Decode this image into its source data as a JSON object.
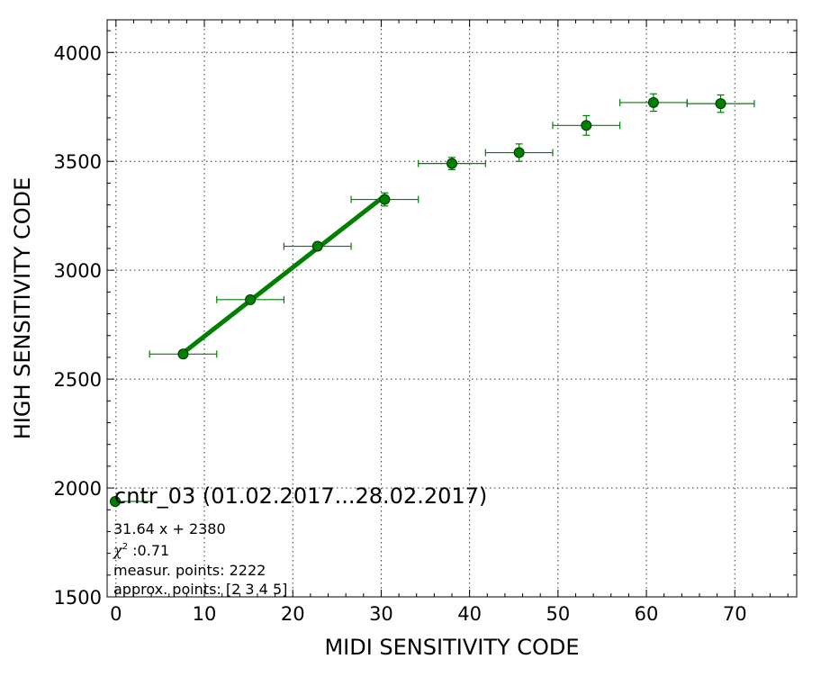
{
  "chart_data": {
    "type": "scatter",
    "xlabel": "MIDI SENSITIVITY CODE",
    "ylabel": "HIGH SENSITIVITY CODE",
    "xlim": [
      -1,
      77
    ],
    "ylim": [
      1500,
      4150
    ],
    "x_ticks": [
      0,
      10,
      20,
      30,
      40,
      50,
      60,
      70
    ],
    "y_ticks": [
      1500,
      2000,
      2500,
      3000,
      3500,
      4000
    ],
    "grid": true,
    "colors": {
      "marker": "#008000",
      "marker_edge": "#003300",
      "fit_line": "#007f00",
      "error_bar": "#008000"
    },
    "series": [
      {
        "name": "cntr_03 (01.02.2017...28.02.2017)",
        "x": [
          7.6,
          15.2,
          22.8,
          30.4,
          38.0,
          45.6,
          53.2,
          60.8,
          68.4
        ],
        "y": [
          2615,
          2865,
          3110,
          3325,
          3490,
          3540,
          3665,
          3770,
          3765
        ],
        "xerr": [
          3.8,
          3.8,
          3.8,
          3.8,
          3.8,
          3.8,
          3.8,
          3.8,
          3.8
        ],
        "yerr": [
          12,
          12,
          15,
          30,
          28,
          40,
          45,
          40,
          40
        ]
      }
    ],
    "fit": {
      "slope": 31.64,
      "intercept": 2380,
      "x_range": [
        7.6,
        30.4
      ]
    },
    "legend": {
      "placement": "lower-left",
      "title": "cntr_03 (01.02.2017...28.02.2017)",
      "lines": {
        "equation": "31.64 x + 2380",
        "chi_symbol": "χ",
        "chi_exp": "2",
        "chi_value": " :0.71",
        "measur": "measur. points: 2222",
        "approx": "approx. points: [2 3 4 5]"
      }
    }
  }
}
